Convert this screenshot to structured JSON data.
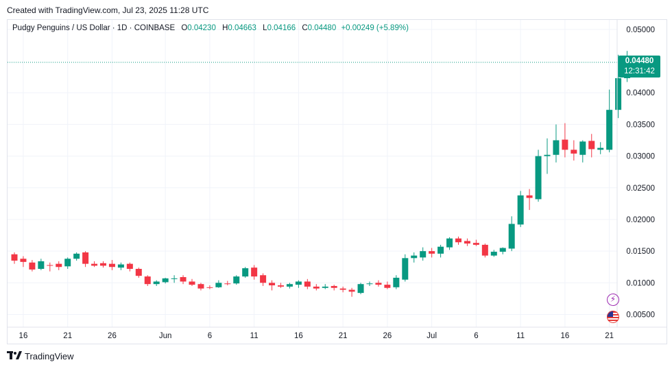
{
  "header": {
    "created": "Created with TradingView.com, Jul 23, 2025 11:28 UTC"
  },
  "legend": {
    "symbol": "Pudgy Penguins / US Dollar · 1D · COINBASE",
    "open_label": "O",
    "open": "0.04230",
    "high_label": "H",
    "high": "0.04663",
    "low_label": "L",
    "low": "0.04166",
    "close_label": "C",
    "close": "0.04480",
    "change": "+0.00249 (+5.89%)"
  },
  "price_tag": {
    "price": "0.04480",
    "countdown": "12:31:42"
  },
  "footer": {
    "brand": "TradingView"
  },
  "icons": [
    "lightning-icon",
    "us-flag-icon"
  ],
  "colors": {
    "up": "#089981",
    "down": "#f23645",
    "grid": "#f0f3fa",
    "axis_text": "#131722"
  },
  "chart_data": {
    "type": "candlestick",
    "title": "Pudgy Penguins / US Dollar · 1D · COINBASE",
    "ylim": [
      0.003,
      0.0515
    ],
    "y_ticks": [
      "0.05000",
      "0.04000",
      "0.03500",
      "0.03000",
      "0.02500",
      "0.02000",
      "0.01500",
      "0.01000",
      "0.00500"
    ],
    "x_ticks": [
      {
        "label": "16",
        "index": 1
      },
      {
        "label": "21",
        "index": 6
      },
      {
        "label": "26",
        "index": 11
      },
      {
        "label": "Jun",
        "index": 17
      },
      {
        "label": "6",
        "index": 22
      },
      {
        "label": "11",
        "index": 27
      },
      {
        "label": "16",
        "index": 32
      },
      {
        "label": "21",
        "index": 37
      },
      {
        "label": "26",
        "index": 42
      },
      {
        "label": "Jul",
        "index": 47
      },
      {
        "label": "6",
        "index": 52
      },
      {
        "label": "11",
        "index": 57
      },
      {
        "label": "16",
        "index": 62
      },
      {
        "label": "21",
        "index": 67
      }
    ],
    "candles": [
      [
        0.0145,
        0.0148,
        0.013,
        0.0135
      ],
      [
        0.0138,
        0.0142,
        0.0125,
        0.0133
      ],
      [
        0.0132,
        0.0136,
        0.0118,
        0.0121
      ],
      [
        0.0122,
        0.0138,
        0.012,
        0.0134
      ],
      [
        0.0128,
        0.0132,
        0.0118,
        0.0127
      ],
      [
        0.013,
        0.0134,
        0.012,
        0.0125
      ],
      [
        0.0126,
        0.014,
        0.0122,
        0.0138
      ],
      [
        0.0138,
        0.0148,
        0.0135,
        0.0146
      ],
      [
        0.0148,
        0.015,
        0.0125,
        0.013
      ],
      [
        0.013,
        0.0134,
        0.0125,
        0.0127
      ],
      [
        0.0131,
        0.0134,
        0.0124,
        0.0127
      ],
      [
        0.013,
        0.0136,
        0.012,
        0.0125
      ],
      [
        0.0124,
        0.0132,
        0.012,
        0.0129
      ],
      [
        0.013,
        0.0132,
        0.0118,
        0.0122
      ],
      [
        0.0122,
        0.0124,
        0.0108,
        0.0111
      ],
      [
        0.011,
        0.0112,
        0.0095,
        0.0098
      ],
      [
        0.0098,
        0.0104,
        0.0095,
        0.0102
      ],
      [
        0.0101,
        0.0108,
        0.0099,
        0.0107
      ],
      [
        0.0106,
        0.0112,
        0.01,
        0.0107
      ],
      [
        0.0109,
        0.0112,
        0.0098,
        0.0102
      ],
      [
        0.0102,
        0.0106,
        0.0095,
        0.0097
      ],
      [
        0.0098,
        0.01,
        0.0088,
        0.0091
      ],
      [
        0.0093,
        0.0096,
        0.009,
        0.0092
      ],
      [
        0.0093,
        0.0104,
        0.0092,
        0.01
      ],
      [
        0.0099,
        0.0103,
        0.0096,
        0.0098
      ],
      [
        0.0099,
        0.0112,
        0.0097,
        0.011
      ],
      [
        0.011,
        0.0125,
        0.0108,
        0.0123
      ],
      [
        0.0124,
        0.0128,
        0.0105,
        0.011
      ],
      [
        0.0112,
        0.0115,
        0.0095,
        0.01
      ],
      [
        0.01,
        0.0104,
        0.0088,
        0.0096
      ],
      [
        0.0096,
        0.01,
        0.0092,
        0.0094
      ],
      [
        0.0094,
        0.01,
        0.0091,
        0.0098
      ],
      [
        0.0097,
        0.0104,
        0.0092,
        0.0102
      ],
      [
        0.0102,
        0.0106,
        0.009,
        0.0094
      ],
      [
        0.0094,
        0.0098,
        0.0088,
        0.0091
      ],
      [
        0.0092,
        0.0098,
        0.009,
        0.0094
      ],
      [
        0.0095,
        0.0097,
        0.0088,
        0.0092
      ],
      [
        0.0091,
        0.0094,
        0.0085,
        0.0089
      ],
      [
        0.0089,
        0.0092,
        0.0078,
        0.0086
      ],
      [
        0.0084,
        0.01,
        0.0082,
        0.0098
      ],
      [
        0.0098,
        0.0102,
        0.0095,
        0.0099
      ],
      [
        0.01,
        0.0104,
        0.0094,
        0.0097
      ],
      [
        0.0097,
        0.0102,
        0.009,
        0.0092
      ],
      [
        0.0093,
        0.0112,
        0.009,
        0.0108
      ],
      [
        0.0105,
        0.0145,
        0.0102,
        0.0139
      ],
      [
        0.0139,
        0.0148,
        0.0132,
        0.0143
      ],
      [
        0.014,
        0.0156,
        0.0135,
        0.015
      ],
      [
        0.015,
        0.0155,
        0.014,
        0.0146
      ],
      [
        0.0146,
        0.016,
        0.014,
        0.0157
      ],
      [
        0.0156,
        0.0172,
        0.0152,
        0.017
      ],
      [
        0.017,
        0.0173,
        0.016,
        0.0164
      ],
      [
        0.0166,
        0.017,
        0.0158,
        0.0162
      ],
      [
        0.0163,
        0.0168,
        0.0158,
        0.016
      ],
      [
        0.016,
        0.0162,
        0.014,
        0.0143
      ],
      [
        0.0143,
        0.0152,
        0.0141,
        0.0149
      ],
      [
        0.0149,
        0.0156,
        0.0145,
        0.0155
      ],
      [
        0.0154,
        0.0205,
        0.015,
        0.0193
      ],
      [
        0.0192,
        0.0245,
        0.0188,
        0.0238
      ],
      [
        0.0238,
        0.0248,
        0.0215,
        0.0234
      ],
      [
        0.0232,
        0.031,
        0.0228,
        0.03
      ],
      [
        0.03,
        0.0328,
        0.0272,
        0.0302
      ],
      [
        0.0302,
        0.035,
        0.029,
        0.0325
      ],
      [
        0.0326,
        0.0352,
        0.0298,
        0.031
      ],
      [
        0.031,
        0.0325,
        0.0293,
        0.0304
      ],
      [
        0.0302,
        0.0325,
        0.029,
        0.0323
      ],
      [
        0.0324,
        0.0335,
        0.0298,
        0.0311
      ],
      [
        0.031,
        0.0322,
        0.0303,
        0.0313
      ],
      [
        0.031,
        0.0405,
        0.0306,
        0.0373
      ],
      [
        0.0373,
        0.046,
        0.036,
        0.0423
      ],
      [
        0.0423,
        0.0466,
        0.0417,
        0.0448
      ]
    ]
  }
}
